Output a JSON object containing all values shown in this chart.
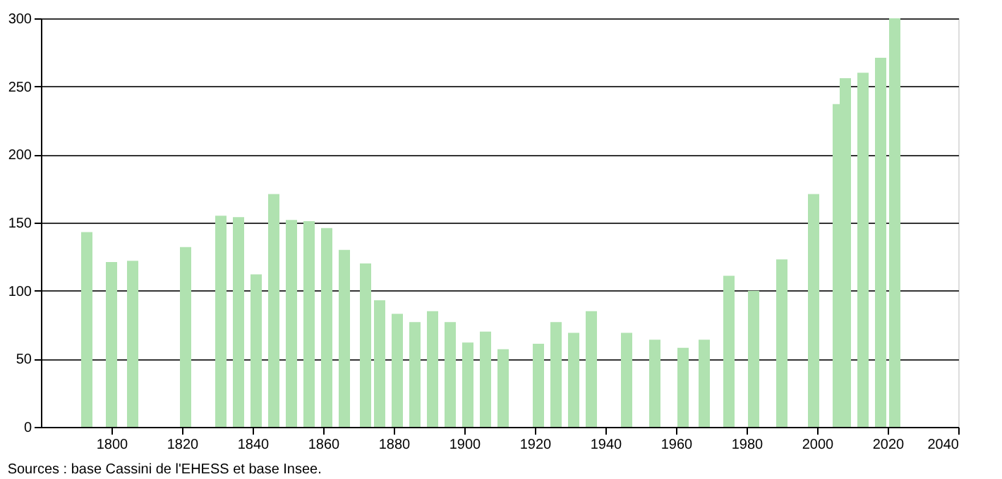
{
  "chart_data": {
    "type": "bar",
    "x": [
      1793,
      1800,
      1806,
      1821,
      1831,
      1836,
      1841,
      1846,
      1851,
      1856,
      1861,
      1866,
      1872,
      1876,
      1881,
      1886,
      1891,
      1896,
      1901,
      1906,
      1911,
      1921,
      1926,
      1931,
      1936,
      1946,
      1954,
      1962,
      1968,
      1975,
      1982,
      1990,
      1999,
      2006,
      2008,
      2013,
      2018,
      2022
    ],
    "values": [
      143,
      121,
      122,
      132,
      155,
      154,
      112,
      171,
      152,
      151,
      146,
      130,
      120,
      93,
      83,
      77,
      85,
      77,
      62,
      70,
      57,
      61,
      77,
      69,
      85,
      69,
      64,
      58,
      64,
      111,
      100,
      123,
      171,
      237,
      256,
      260,
      271,
      300
    ],
    "color": "#b0e2b0",
    "xlim": [
      1780,
      2040
    ],
    "xticks": [
      1800,
      1820,
      1840,
      1860,
      1880,
      1900,
      1920,
      1940,
      1960,
      1980,
      2000,
      2020,
      2040
    ],
    "ylim": [
      0,
      300
    ],
    "yticks": [
      0,
      50,
      100,
      150,
      200,
      250,
      300
    ],
    "grid": "y",
    "annotations": [
      "Sources : base Cassini de l'EHESS et base Insee."
    ]
  }
}
